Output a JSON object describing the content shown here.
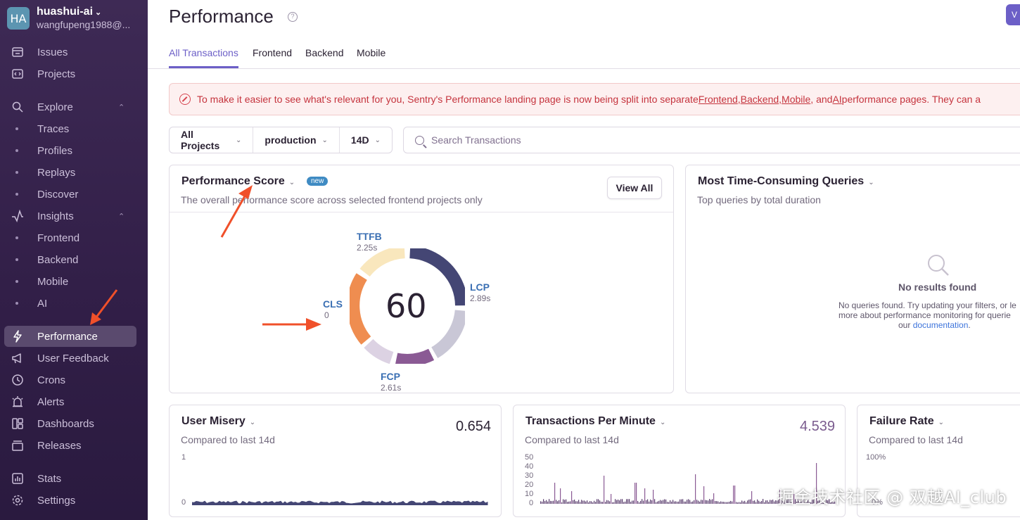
{
  "org": {
    "initials": "HA",
    "name": "huashui-ai",
    "email": "wangfupeng1988@..."
  },
  "nav": {
    "issues": "Issues",
    "projects": "Projects",
    "explore": "Explore",
    "traces": "Traces",
    "profiles": "Profiles",
    "replays": "Replays",
    "discover": "Discover",
    "insights": "Insights",
    "frontend": "Frontend",
    "backend": "Backend",
    "mobile": "Mobile",
    "ai": "AI",
    "performance": "Performance",
    "user_feedback": "User Feedback",
    "crons": "Crons",
    "alerts": "Alerts",
    "dashboards": "Dashboards",
    "releases": "Releases",
    "stats": "Stats",
    "settings": "Settings"
  },
  "header": {
    "title": "Performance",
    "help": "?",
    "button": "V"
  },
  "tabs": {
    "all": "All Transactions",
    "frontend": "Frontend",
    "backend": "Backend",
    "mobile": "Mobile"
  },
  "alert": {
    "pre": "To make it easier to see what's relevant for you, Sentry's Performance landing page is now being split into separate ",
    "frontend": "Frontend",
    "comma1": ", ",
    "backend": "Backend",
    "comma2": ", ",
    "mobile": "Mobile",
    "and": ", and ",
    "ai": "AI",
    "post": " performance pages. They can a"
  },
  "filters": {
    "projects": "All Projects",
    "environment": "production",
    "period": "14D"
  },
  "search": {
    "placeholder": "Search Transactions"
  },
  "perf_score": {
    "title": "Performance Score",
    "badge": "new",
    "subtitle": "The overall performance score across selected frontend projects only",
    "view_all": "View All",
    "score": "60",
    "ttfb_label": "TTFB",
    "ttfb_value": "2.25s",
    "lcp_label": "LCP",
    "lcp_value": "2.89s",
    "cls_label": "CLS",
    "cls_value": "0",
    "fcp_label": "FCP",
    "fcp_value": "2.61s"
  },
  "queries": {
    "title": "Most Time-Consuming Queries",
    "subtitle": "Top queries by total duration",
    "empty_title": "No results found",
    "empty_line1": "No queries found. Try updating your filters, or le",
    "empty_line2": "more about performance monitoring for querie",
    "empty_line3_pre": "our ",
    "empty_link": "documentation",
    "empty_line3_post": "."
  },
  "user_misery": {
    "title": "User Misery",
    "subtitle": "Compared to last 14d",
    "value": "0.654",
    "ytick_top": "1",
    "ytick_bottom": "0"
  },
  "tpm": {
    "title": "Transactions Per Minute",
    "subtitle": "Compared to last 14d",
    "value": "4.539",
    "yticks": [
      "50",
      "40",
      "30",
      "20",
      "10",
      "0"
    ]
  },
  "failure_rate": {
    "title": "Failure Rate",
    "subtitle": "Compared to last 14d",
    "ytick_top": "100%",
    "ytick_bottom": "0%"
  },
  "watermark": "掘金技术社区 @ 双越AI_club",
  "colors": {
    "accent": "#6c5fc7",
    "sidebar": "#3e2a55",
    "alert_text": "#c5333d",
    "arrow": "#f0502a"
  }
}
